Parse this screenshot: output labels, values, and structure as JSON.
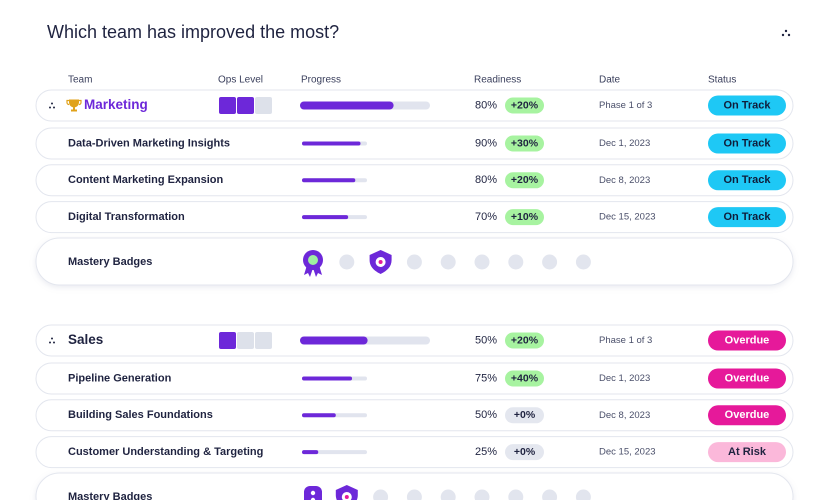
{
  "title": "Which team has improved the most?",
  "columns": [
    "Team",
    "Ops Level",
    "Progress",
    "Readiness",
    "Date",
    "Status"
  ],
  "groups": [
    {
      "name": "Marketing",
      "name_color": "#6d28d9",
      "trophy": true,
      "ops_level": 2,
      "ops_max": 3,
      "progress": 72,
      "readiness": "80%",
      "change": "+20%",
      "change_color": "#a7f3a0",
      "date": "Phase 1 of 3",
      "status": {
        "label": "On Track",
        "color": "#1ec8f5",
        "text_color": "#0f1d3a"
      },
      "items": [
        {
          "name": "Data-Driven Marketing Insights",
          "progress": 90,
          "readiness": "90%",
          "change": "+30%",
          "change_color": "#a7f3a0",
          "date": "Dec 1, 2023",
          "status": {
            "label": "On Track",
            "color": "#1ec8f5",
            "text_color": "#0f1d3a"
          }
        },
        {
          "name": "Content Marketing Expansion",
          "progress": 82,
          "readiness": "80%",
          "change": "+20%",
          "change_color": "#a7f3a0",
          "date": "Dec 8, 2023",
          "status": {
            "label": "On Track",
            "color": "#1ec8f5",
            "text_color": "#0f1d3a"
          }
        },
        {
          "name": "Digital Transformation",
          "progress": 71,
          "readiness": "70%",
          "change": "+10%",
          "change_color": "#a7f3a0",
          "date": "Dec 15, 2023",
          "status": {
            "label": "On Track",
            "color": "#1ec8f5",
            "text_color": "#0f1d3a"
          }
        }
      ],
      "badges_label": "Mastery Badges"
    },
    {
      "name": "Sales",
      "name_color": "#1f2340",
      "trophy": false,
      "ops_level": 1,
      "ops_max": 3,
      "progress": 52,
      "readiness": "50%",
      "change": "+20%",
      "change_color": "#a7f3a0",
      "date": "Phase 1 of 3",
      "status": {
        "label": "Overdue",
        "color": "#e6199a",
        "text_color": "#ffffff"
      },
      "items": [
        {
          "name": "Pipeline Generation",
          "progress": 77,
          "readiness": "75%",
          "change": "+40%",
          "change_color": "#a7f3a0",
          "date": "Dec 1, 2023",
          "status": {
            "label": "Overdue",
            "color": "#e6199a",
            "text_color": "#ffffff"
          }
        },
        {
          "name": "Building Sales Foundations",
          "progress": 52,
          "readiness": "50%",
          "change": "+0%",
          "change_color": "#e4e7ef",
          "date": "Dec 8, 2023",
          "status": {
            "label": "Overdue",
            "color": "#e6199a",
            "text_color": "#ffffff"
          }
        },
        {
          "name": "Customer Understanding & Targeting",
          "progress": 25,
          "readiness": "25%",
          "change": "+0%",
          "change_color": "#e4e7ef",
          "date": "Dec 15, 2023",
          "status": {
            "label": "At Risk",
            "color": "#fbb8da",
            "text_color": "#1f2340"
          }
        }
      ],
      "badges_label": "Mastery Badges"
    }
  ]
}
